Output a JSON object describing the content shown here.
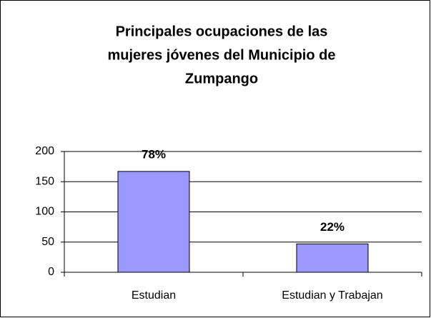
{
  "chart_data": {
    "type": "bar",
    "title": [
      "Principales ocupaciones de las",
      "mujeres jóvenes del Municipio de",
      "Zumpango"
    ],
    "categories": [
      "Estudian",
      "Estudian y Trabajan"
    ],
    "values": [
      167,
      47
    ],
    "value_labels": [
      "78%",
      "22%"
    ],
    "color": "#9999ff",
    "ylim": [
      0,
      200
    ],
    "yticks": [
      0,
      50,
      100,
      150,
      200
    ],
    "grid": true
  }
}
